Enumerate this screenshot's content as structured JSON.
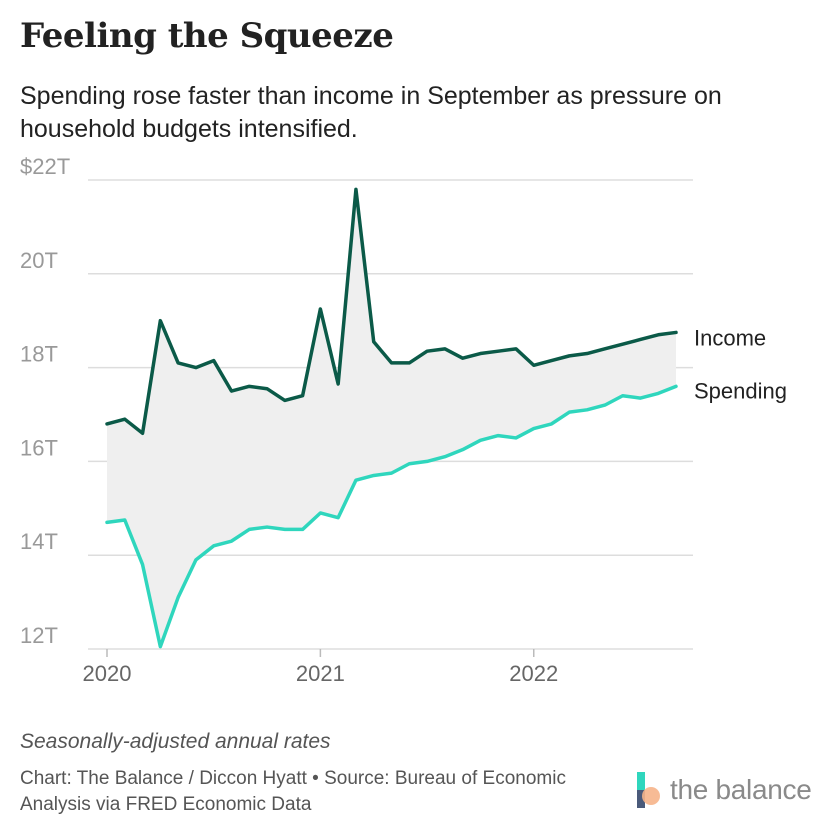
{
  "header": {
    "title": "Feeling the Squeeze",
    "subtitle": "Spending rose faster than income in September as pressure on household budgets intensified."
  },
  "footer": {
    "note": "Seasonally-adjusted annual rates",
    "source": "Chart: The Balance / Diccon Hyatt • Source: Bureau of Economic Analysis via FRED Economic Data",
    "logo_text": "the balance"
  },
  "colors": {
    "income": "#0b5a48",
    "spending": "#2fd6bd",
    "fill": "#efefef",
    "grid": "#dddddd",
    "tick": "#999999"
  },
  "chart_data": {
    "type": "line",
    "title": "Feeling the Squeeze",
    "ylim": [
      12,
      22
    ],
    "yticks": [
      {
        "value": 22,
        "label": "$22T"
      },
      {
        "value": 20,
        "label": "20T"
      },
      {
        "value": 18,
        "label": "18T"
      },
      {
        "value": 16,
        "label": "16T"
      },
      {
        "value": 14,
        "label": "14T"
      },
      {
        "value": 12,
        "label": "12T"
      }
    ],
    "xticks": [
      {
        "label": "2020",
        "index": 0
      },
      {
        "label": "2021",
        "index": 12
      },
      {
        "label": "2022",
        "index": 24
      }
    ],
    "x": [
      "2020-01",
      "2020-02",
      "2020-03",
      "2020-04",
      "2020-05",
      "2020-06",
      "2020-07",
      "2020-08",
      "2020-09",
      "2020-10",
      "2020-11",
      "2020-12",
      "2021-01",
      "2021-02",
      "2021-03",
      "2021-04",
      "2021-05",
      "2021-06",
      "2021-07",
      "2021-08",
      "2021-09",
      "2021-10",
      "2021-11",
      "2021-12",
      "2022-01",
      "2022-02",
      "2022-03",
      "2022-04",
      "2022-05",
      "2022-06",
      "2022-07",
      "2022-08",
      "2022-09"
    ],
    "grid": true,
    "series": [
      {
        "name": "Income",
        "values": [
          16.8,
          16.9,
          16.6,
          19.0,
          18.1,
          18.0,
          18.15,
          17.5,
          17.6,
          17.55,
          17.3,
          17.4,
          19.25,
          17.65,
          21.8,
          18.55,
          18.1,
          18.1,
          18.35,
          18.4,
          18.2,
          18.3,
          18.35,
          18.4,
          18.05,
          18.15,
          18.25,
          18.3,
          18.4,
          18.5,
          18.6,
          18.7,
          18.75
        ]
      },
      {
        "name": "Spending",
        "values": [
          14.7,
          14.75,
          13.8,
          12.05,
          13.1,
          13.9,
          14.2,
          14.3,
          14.55,
          14.6,
          14.55,
          14.55,
          14.9,
          14.8,
          15.6,
          15.7,
          15.75,
          15.95,
          16.0,
          16.1,
          16.25,
          16.45,
          16.55,
          16.5,
          16.7,
          16.8,
          17.05,
          17.1,
          17.2,
          17.4,
          17.35,
          17.45,
          17.6
        ]
      }
    ]
  }
}
